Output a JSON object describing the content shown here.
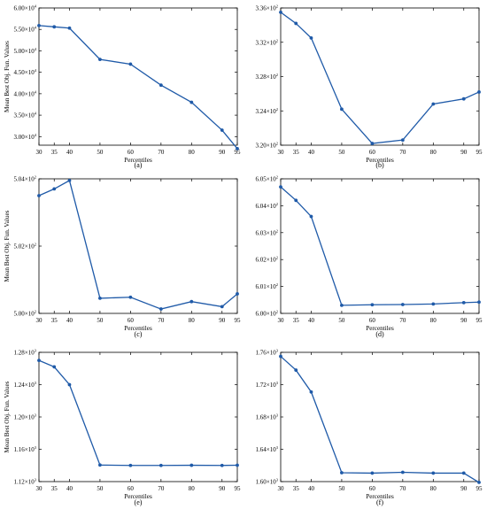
{
  "style": {
    "line_color": "#1f5aa8",
    "axis_color": "#000000",
    "background": "#ffffff"
  },
  "chart_data": [
    {
      "type": "line",
      "label": "(a)",
      "xlabel": "Percentiles",
      "ylabel": "Mean Best Obj. Fun. Values",
      "x": [
        30,
        35,
        40,
        50,
        60,
        70,
        80,
        90,
        95
      ],
      "y": [
        55900,
        55600,
        55300,
        48000,
        46900,
        42000,
        38000,
        31500,
        27200
      ],
      "ylim": [
        28000,
        60000
      ],
      "xlim": [
        30,
        95
      ],
      "yticks": [
        {
          "value": 30000,
          "mantissa": "3.00",
          "exp": "4"
        },
        {
          "value": 35000,
          "mantissa": "3.50",
          "exp": "4"
        },
        {
          "value": 40000,
          "mantissa": "4.00",
          "exp": "4"
        },
        {
          "value": 45000,
          "mantissa": "4.50",
          "exp": "4"
        },
        {
          "value": 50000,
          "mantissa": "5.00",
          "exp": "4"
        },
        {
          "value": 55000,
          "mantissa": "5.50",
          "exp": "4"
        },
        {
          "value": 60000,
          "mantissa": "6.00",
          "exp": "4"
        }
      ],
      "grid": false,
      "legend": "none"
    },
    {
      "type": "line",
      "label": "(b)",
      "xlabel": "Percentiles",
      "ylabel": "",
      "x": [
        30,
        35,
        40,
        50,
        60,
        70,
        80,
        90,
        95
      ],
      "y": [
        335.5,
        334.2,
        332.5,
        324.2,
        320.2,
        320.6,
        324.8,
        325.4,
        326.2
      ],
      "ylim": [
        320,
        336
      ],
      "xlim": [
        30,
        95
      ],
      "yticks": [
        {
          "value": 320,
          "mantissa": "3.20",
          "exp": "2"
        },
        {
          "value": 324,
          "mantissa": "3.24",
          "exp": "2"
        },
        {
          "value": 328,
          "mantissa": "3.28",
          "exp": "2"
        },
        {
          "value": 332,
          "mantissa": "3.32",
          "exp": "2"
        },
        {
          "value": 336,
          "mantissa": "3.36",
          "exp": "2"
        }
      ],
      "grid": false,
      "legend": "none"
    },
    {
      "type": "line",
      "label": "(c)",
      "xlabel": "Percentiles",
      "ylabel": "Mean Best Obj. Fun. Values",
      "x": [
        30,
        35,
        40,
        50,
        60,
        70,
        80,
        90,
        95
      ],
      "y": [
        503.5,
        503.7,
        503.95,
        500.45,
        500.48,
        500.13,
        500.35,
        500.2,
        500.58
      ],
      "ylim": [
        500,
        504
      ],
      "xlim": [
        30,
        95
      ],
      "yticks": [
        {
          "value": 500,
          "mantissa": "5.00",
          "exp": "2"
        },
        {
          "value": 502,
          "mantissa": "5.02",
          "exp": "2"
        },
        {
          "value": 504,
          "mantissa": "5.04",
          "exp": "2"
        }
      ],
      "grid": false,
      "legend": "none"
    },
    {
      "type": "line",
      "label": "(d)",
      "xlabel": "Percentiles",
      "ylabel": "",
      "x": [
        30,
        35,
        40,
        50,
        60,
        70,
        80,
        90,
        95
      ],
      "y": [
        604.7,
        604.2,
        603.6,
        600.3,
        600.32,
        600.33,
        600.35,
        600.4,
        600.42
      ],
      "ylim": [
        600,
        605
      ],
      "xlim": [
        30,
        95
      ],
      "yticks": [
        {
          "value": 600,
          "mantissa": "6.00",
          "exp": "2"
        },
        {
          "value": 601,
          "mantissa": "6.01",
          "exp": "2"
        },
        {
          "value": 602,
          "mantissa": "6.02",
          "exp": "2"
        },
        {
          "value": 603,
          "mantissa": "6.03",
          "exp": "2"
        },
        {
          "value": 604,
          "mantissa": "6.04",
          "exp": "2"
        },
        {
          "value": 605,
          "mantissa": "6.05",
          "exp": "2"
        }
      ],
      "grid": false,
      "legend": "none"
    },
    {
      "type": "line",
      "label": "(e)",
      "xlabel": "Percentiles",
      "ylabel": "Mean Best Obj. Fun. Values",
      "x": [
        30,
        35,
        40,
        50,
        60,
        70,
        80,
        90,
        95
      ],
      "y": [
        1270,
        1262,
        1240,
        1140.5,
        1140,
        1140,
        1140.2,
        1140,
        1140.3
      ],
      "ylim": [
        1120,
        1280
      ],
      "xlim": [
        30,
        95
      ],
      "yticks": [
        {
          "value": 1120,
          "mantissa": "1.12",
          "exp": "3"
        },
        {
          "value": 1160,
          "mantissa": "1.16",
          "exp": "3"
        },
        {
          "value": 1200,
          "mantissa": "1.20",
          "exp": "3"
        },
        {
          "value": 1240,
          "mantissa": "1.24",
          "exp": "3"
        },
        {
          "value": 1280,
          "mantissa": "1.28",
          "exp": "3"
        }
      ],
      "grid": false,
      "legend": "none"
    },
    {
      "type": "line",
      "label": "(f)",
      "xlabel": "Percentiles",
      "ylabel": "",
      "x": [
        30,
        35,
        40,
        50,
        60,
        70,
        80,
        90,
        95
      ],
      "y": [
        1755,
        1738,
        1711,
        1611,
        1610.5,
        1611.5,
        1610.5,
        1610.5,
        1599
      ],
      "ylim": [
        1600,
        1760
      ],
      "xlim": [
        30,
        95
      ],
      "yticks": [
        {
          "value": 1600,
          "mantissa": "1.60",
          "exp": "3"
        },
        {
          "value": 1640,
          "mantissa": "1.64",
          "exp": "3"
        },
        {
          "value": 1680,
          "mantissa": "1.68",
          "exp": "3"
        },
        {
          "value": 1720,
          "mantissa": "1.72",
          "exp": "3"
        },
        {
          "value": 1760,
          "mantissa": "1.76",
          "exp": "3"
        }
      ],
      "grid": false,
      "legend": "none"
    }
  ]
}
